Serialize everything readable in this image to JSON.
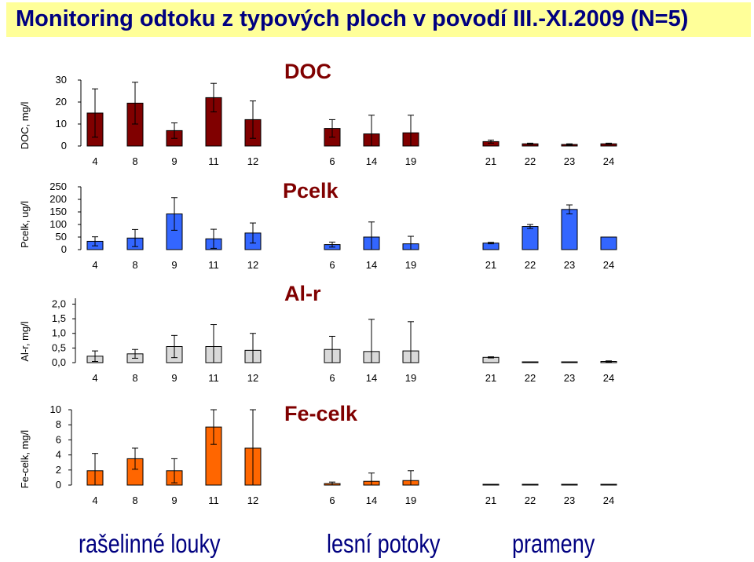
{
  "title": "Monitoring odtoku z typových ploch v povodí III.-XI.2009 (N=5)",
  "group_labels": [
    "rašelinné louky",
    "lesní potoky",
    "prameny"
  ],
  "chart_data": [
    {
      "type": "bar",
      "title": "DOC",
      "ylabel": "DOC, mg/l",
      "color": "#800000",
      "categories": [
        "4",
        "8",
        "9",
        "11",
        "12",
        "6",
        "14",
        "19",
        "21",
        "22",
        "23",
        "24"
      ],
      "values": [
        15,
        19.5,
        7,
        22,
        12,
        8,
        5.5,
        6,
        2,
        1,
        0.7,
        1
      ],
      "error": [
        11,
        9.5,
        3.5,
        6.5,
        8.5,
        4,
        8.5,
        8,
        0.7,
        0.3,
        0.3,
        0.3
      ],
      "ylim": [
        0,
        30
      ],
      "yticks": [
        "30",
        "20",
        "10",
        "0"
      ],
      "ytick_values": [
        30,
        20,
        10,
        0
      ]
    },
    {
      "type": "bar",
      "title": "Pcelk",
      "ylabel": "Pcelk, ug/l",
      "color": "#3366ff",
      "categories": [
        "4",
        "8",
        "9",
        "11",
        "12",
        "6",
        "14",
        "19",
        "21",
        "22",
        "23",
        "24"
      ],
      "values": [
        33,
        46,
        142,
        43,
        66,
        20,
        50,
        23,
        26,
        92,
        160,
        50
      ],
      "error": [
        18,
        34,
        65,
        38,
        40,
        10,
        60,
        30,
        3,
        8,
        18,
        0
      ],
      "ylim": [
        0,
        250
      ],
      "yticks": [
        "250",
        "200",
        "150",
        "100",
        "50",
        "0"
      ],
      "ytick_values": [
        250,
        200,
        150,
        100,
        50,
        0
      ]
    },
    {
      "type": "bar",
      "title": "Al-r",
      "ylabel": "Al-r, mg/l",
      "color": "#d9d9d9",
      "categories": [
        "4",
        "8",
        "9",
        "11",
        "12",
        "6",
        "14",
        "19",
        "21",
        "22",
        "23",
        "24"
      ],
      "values": [
        0.22,
        0.3,
        0.55,
        0.55,
        0.42,
        0.45,
        0.38,
        0.4,
        0.18,
        0.01,
        0.01,
        0.04
      ],
      "error": [
        0.18,
        0.15,
        0.38,
        0.75,
        0.58,
        0.45,
        1.1,
        1.0,
        0.02,
        0.0,
        0.0,
        0.02
      ],
      "ylim": [
        0,
        2.2
      ],
      "yticks": [
        "2,0",
        "1,5",
        "1,0",
        "0,5",
        "0,0"
      ],
      "ytick_values": [
        2.0,
        1.5,
        1.0,
        0.5,
        0.0
      ]
    },
    {
      "type": "bar",
      "title": "Fe-celk",
      "ylabel": "Fe-celk, mg/l",
      "color": "#ff6600",
      "categories": [
        "4",
        "8",
        "9",
        "11",
        "12",
        "6",
        "14",
        "19",
        "21",
        "22",
        "23",
        "24"
      ],
      "values": [
        1.9,
        3.5,
        1.9,
        7.7,
        4.9,
        0.2,
        0.5,
        0.6,
        0.02,
        0.02,
        0.02,
        0.02
      ],
      "error": [
        2.3,
        1.4,
        1.6,
        2.3,
        5.1,
        0.2,
        1.1,
        1.3,
        0,
        0,
        0,
        0
      ],
      "ylim": [
        0,
        10
      ],
      "yticks": [
        "10",
        "8",
        "6",
        "4",
        "2",
        "0"
      ],
      "ytick_values": [
        10,
        8,
        6,
        4,
        2,
        0
      ]
    }
  ]
}
